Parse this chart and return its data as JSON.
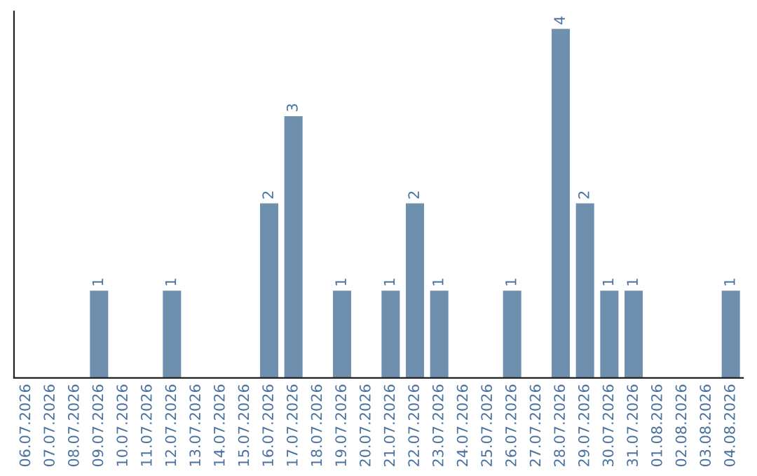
{
  "chart_data": {
    "type": "bar",
    "categories": [
      "06.07.2026",
      "07.07.2026",
      "08.07.2026",
      "09.07.2026",
      "10.07.2026",
      "11.07.2026",
      "12.07.2026",
      "13.07.2026",
      "14.07.2026",
      "15.07.2026",
      "16.07.2026",
      "17.07.2026",
      "18.07.2026",
      "19.07.2026",
      "20.07.2026",
      "21.07.2026",
      "22.07.2026",
      "23.07.2026",
      "24.07.2026",
      "25.07.2026",
      "26.07.2026",
      "27.07.2026",
      "28.07.2026",
      "29.07.2026",
      "30.07.2026",
      "31.07.2026",
      "01.08.2026",
      "02.08.2026",
      "03.08.2026",
      "04.08.2026"
    ],
    "values": [
      0,
      0,
      0,
      1,
      0,
      0,
      1,
      0,
      0,
      0,
      2,
      3,
      0,
      1,
      0,
      1,
      2,
      1,
      0,
      0,
      1,
      0,
      4,
      2,
      1,
      1,
      0,
      0,
      0,
      1
    ],
    "value_labels": [
      null,
      null,
      null,
      "1",
      null,
      null,
      "1",
      null,
      null,
      null,
      "2",
      "3",
      null,
      "1",
      null,
      "1",
      "2",
      "1",
      null,
      null,
      "1",
      null,
      "4",
      "2",
      "1",
      "1",
      null,
      null,
      null,
      "1"
    ],
    "color": "#6f8fae",
    "tick_labels": "x",
    "grid": false,
    "legend": false
  }
}
